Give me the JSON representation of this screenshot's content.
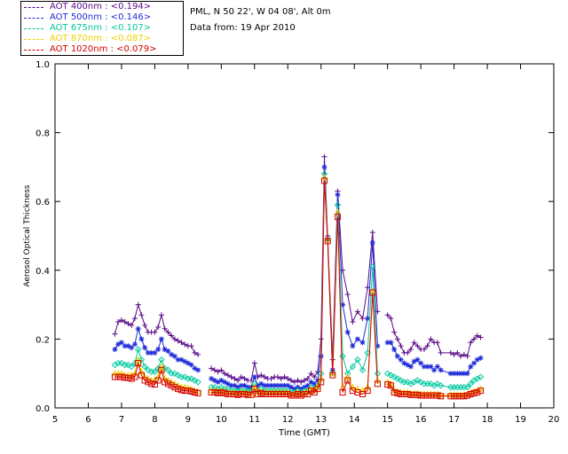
{
  "legend": [
    {
      "label": "AOT  400nm : <0.194>",
      "color": "#5a0a8a"
    },
    {
      "label": "AOT  500nm : <0.146>",
      "color": "#1f2bd8"
    },
    {
      "label": "AOT  675nm : <0.107>",
      "color": "#00c8a0"
    },
    {
      "label": "AOT  870nm : <0.087>",
      "color": "#f0d000"
    },
    {
      "label": "AOT 1020nm : <0.079>",
      "color": "#d40000"
    }
  ],
  "info": {
    "site": "PML, N 50 22', W 04 08', Alt 0m",
    "date": "Data from: 19 Apr 2010"
  },
  "chart_data": {
    "type": "scatter",
    "title": "",
    "xlabel": "Time (GMT)",
    "ylabel": "Aerosol Optical Thickness",
    "xlim": [
      5,
      20
    ],
    "ylim": [
      0,
      1.0
    ],
    "xticks": [
      "5",
      "6",
      "7",
      "8",
      "9",
      "10",
      "11",
      "12",
      "13",
      "14",
      "15",
      "16",
      "17",
      "18",
      "19",
      "20"
    ],
    "yticks": [
      "0.0",
      "0.2",
      "0.4",
      "0.6",
      "0.8",
      "1.0"
    ],
    "series": [
      {
        "name": "AOT  400nm",
        "color": "#5a0a8a",
        "marker": "plus",
        "x": [
          6.8,
          6.9,
          7.0,
          7.1,
          7.2,
          7.3,
          7.4,
          7.5,
          7.6,
          7.7,
          7.8,
          7.9,
          8.0,
          8.1,
          8.2,
          8.3,
          8.4,
          8.5,
          8.6,
          8.7,
          8.8,
          8.9,
          9.0,
          9.1,
          9.2,
          9.3,
          9.7,
          9.8,
          9.9,
          10.0,
          10.1,
          10.2,
          10.3,
          10.4,
          10.5,
          10.6,
          10.7,
          10.8,
          10.9,
          11.0,
          11.1,
          11.2,
          11.3,
          11.4,
          11.5,
          11.6,
          11.7,
          11.8,
          11.9,
          12.0,
          12.1,
          12.2,
          12.3,
          12.4,
          12.5,
          12.6,
          12.7,
          12.8,
          12.9,
          13.0,
          13.1,
          13.2,
          13.35,
          13.5,
          13.65,
          13.8,
          13.95,
          14.1,
          14.25,
          14.4,
          14.55,
          14.7,
          15.0,
          15.1,
          15.2,
          15.3,
          15.4,
          15.5,
          15.6,
          15.7,
          15.8,
          15.9,
          16.0,
          16.1,
          16.2,
          16.3,
          16.4,
          16.5,
          16.6,
          16.9,
          17.0,
          17.1,
          17.2,
          17.3,
          17.4,
          17.5,
          17.6,
          17.7,
          17.8
        ],
        "y": [
          0.215,
          0.25,
          0.255,
          0.25,
          0.245,
          0.24,
          0.26,
          0.3,
          0.27,
          0.24,
          0.22,
          0.22,
          0.22,
          0.235,
          0.27,
          0.23,
          0.22,
          0.21,
          0.2,
          0.195,
          0.19,
          0.185,
          0.18,
          0.18,
          0.16,
          0.155,
          0.115,
          0.11,
          0.105,
          0.11,
          0.1,
          0.095,
          0.09,
          0.085,
          0.08,
          0.09,
          0.085,
          0.08,
          0.08,
          0.13,
          0.09,
          0.095,
          0.09,
          0.085,
          0.085,
          0.09,
          0.09,
          0.085,
          0.09,
          0.085,
          0.08,
          0.075,
          0.08,
          0.075,
          0.08,
          0.085,
          0.1,
          0.09,
          0.105,
          0.2,
          0.73,
          0.5,
          0.14,
          0.63,
          0.4,
          0.33,
          0.25,
          0.28,
          0.26,
          0.35,
          0.51,
          0.28,
          0.27,
          0.26,
          0.22,
          0.2,
          0.18,
          0.16,
          0.16,
          0.17,
          0.19,
          0.18,
          0.17,
          0.17,
          0.18,
          0.2,
          0.19,
          0.19,
          0.16,
          0.16,
          0.155,
          0.16,
          0.15,
          0.155,
          0.15,
          0.19,
          0.2,
          0.21,
          0.205
        ]
      },
      {
        "name": "AOT  500nm",
        "color": "#1f2bd8",
        "marker": "asterisk",
        "x": [
          6.8,
          6.9,
          7.0,
          7.1,
          7.2,
          7.3,
          7.4,
          7.5,
          7.6,
          7.7,
          7.8,
          7.9,
          8.0,
          8.1,
          8.2,
          8.3,
          8.4,
          8.5,
          8.6,
          8.7,
          8.8,
          8.9,
          9.0,
          9.1,
          9.2,
          9.3,
          9.7,
          9.8,
          9.9,
          10.0,
          10.1,
          10.2,
          10.3,
          10.4,
          10.5,
          10.6,
          10.7,
          10.8,
          10.9,
          11.0,
          11.1,
          11.2,
          11.3,
          11.4,
          11.5,
          11.6,
          11.7,
          11.8,
          11.9,
          12.0,
          12.1,
          12.2,
          12.3,
          12.4,
          12.5,
          12.6,
          12.7,
          12.8,
          12.9,
          13.0,
          13.1,
          13.2,
          13.35,
          13.5,
          13.65,
          13.8,
          13.95,
          14.1,
          14.25,
          14.4,
          14.55,
          14.7,
          15.0,
          15.1,
          15.2,
          15.3,
          15.4,
          15.5,
          15.6,
          15.7,
          15.8,
          15.9,
          16.0,
          16.1,
          16.2,
          16.3,
          16.4,
          16.5,
          16.6,
          16.9,
          17.0,
          17.1,
          17.2,
          17.3,
          17.4,
          17.5,
          17.6,
          17.7,
          17.8
        ],
        "y": [
          0.17,
          0.185,
          0.19,
          0.18,
          0.18,
          0.175,
          0.185,
          0.23,
          0.2,
          0.175,
          0.16,
          0.16,
          0.16,
          0.17,
          0.2,
          0.17,
          0.165,
          0.155,
          0.15,
          0.14,
          0.14,
          0.135,
          0.13,
          0.125,
          0.115,
          0.11,
          0.085,
          0.08,
          0.075,
          0.08,
          0.075,
          0.07,
          0.065,
          0.065,
          0.06,
          0.065,
          0.065,
          0.06,
          0.06,
          0.09,
          0.065,
          0.07,
          0.065,
          0.065,
          0.065,
          0.065,
          0.065,
          0.065,
          0.065,
          0.065,
          0.06,
          0.055,
          0.06,
          0.055,
          0.06,
          0.065,
          0.075,
          0.07,
          0.08,
          0.15,
          0.7,
          0.49,
          0.11,
          0.62,
          0.3,
          0.22,
          0.18,
          0.2,
          0.19,
          0.26,
          0.48,
          0.18,
          0.19,
          0.19,
          0.17,
          0.15,
          0.14,
          0.13,
          0.125,
          0.12,
          0.135,
          0.14,
          0.13,
          0.12,
          0.12,
          0.12,
          0.11,
          0.12,
          0.11,
          0.1,
          0.1,
          0.1,
          0.1,
          0.1,
          0.1,
          0.12,
          0.13,
          0.14,
          0.145
        ]
      },
      {
        "name": "AOT  675nm",
        "color": "#00c8a0",
        "marker": "diamond",
        "x": [
          6.8,
          6.9,
          7.0,
          7.1,
          7.2,
          7.3,
          7.4,
          7.5,
          7.6,
          7.7,
          7.8,
          7.9,
          8.0,
          8.1,
          8.2,
          8.3,
          8.4,
          8.5,
          8.6,
          8.7,
          8.8,
          8.9,
          9.0,
          9.1,
          9.2,
          9.3,
          9.7,
          9.8,
          9.9,
          10.0,
          10.1,
          10.2,
          10.3,
          10.4,
          10.5,
          10.6,
          10.7,
          10.8,
          10.9,
          11.0,
          11.1,
          11.2,
          11.3,
          11.4,
          11.5,
          11.6,
          11.7,
          11.8,
          11.9,
          12.0,
          12.1,
          12.2,
          12.3,
          12.4,
          12.5,
          12.6,
          12.7,
          12.8,
          12.9,
          13.0,
          13.1,
          13.2,
          13.35,
          13.5,
          13.65,
          13.8,
          13.95,
          14.1,
          14.25,
          14.4,
          14.55,
          14.7,
          15.0,
          15.1,
          15.2,
          15.3,
          15.4,
          15.5,
          15.6,
          15.7,
          15.8,
          15.9,
          16.0,
          16.1,
          16.2,
          16.3,
          16.4,
          16.5,
          16.6,
          16.9,
          17.0,
          17.1,
          17.2,
          17.3,
          17.4,
          17.5,
          17.6,
          17.7,
          17.8
        ],
        "y": [
          0.125,
          0.13,
          0.13,
          0.125,
          0.125,
          0.12,
          0.13,
          0.17,
          0.14,
          0.12,
          0.11,
          0.105,
          0.105,
          0.115,
          0.14,
          0.115,
          0.11,
          0.1,
          0.1,
          0.095,
          0.09,
          0.09,
          0.085,
          0.085,
          0.08,
          0.075,
          0.06,
          0.06,
          0.055,
          0.06,
          0.055,
          0.055,
          0.05,
          0.05,
          0.05,
          0.05,
          0.05,
          0.05,
          0.05,
          0.07,
          0.05,
          0.055,
          0.05,
          0.05,
          0.05,
          0.05,
          0.05,
          0.05,
          0.05,
          0.05,
          0.045,
          0.045,
          0.05,
          0.045,
          0.05,
          0.05,
          0.06,
          0.055,
          0.065,
          0.1,
          0.68,
          0.49,
          0.1,
          0.59,
          0.15,
          0.1,
          0.12,
          0.14,
          0.11,
          0.16,
          0.41,
          0.1,
          0.1,
          0.095,
          0.09,
          0.085,
          0.08,
          0.075,
          0.075,
          0.07,
          0.075,
          0.08,
          0.075,
          0.07,
          0.07,
          0.07,
          0.065,
          0.07,
          0.065,
          0.06,
          0.06,
          0.06,
          0.06,
          0.06,
          0.06,
          0.07,
          0.08,
          0.085,
          0.09
        ]
      },
      {
        "name": "AOT  870nm",
        "color": "#f0d000",
        "marker": "triangle",
        "x": [
          6.8,
          6.9,
          7.0,
          7.1,
          7.2,
          7.3,
          7.4,
          7.5,
          7.6,
          7.7,
          7.8,
          7.9,
          8.0,
          8.1,
          8.2,
          8.3,
          8.4,
          8.5,
          8.6,
          8.7,
          8.8,
          8.9,
          9.0,
          9.1,
          9.2,
          9.3,
          9.7,
          9.8,
          9.9,
          10.0,
          10.1,
          10.2,
          10.3,
          10.4,
          10.5,
          10.6,
          10.7,
          10.8,
          10.9,
          11.0,
          11.1,
          11.2,
          11.3,
          11.4,
          11.5,
          11.6,
          11.7,
          11.8,
          11.9,
          12.0,
          12.1,
          12.2,
          12.3,
          12.4,
          12.5,
          12.6,
          12.7,
          12.8,
          12.9,
          13.0,
          13.1,
          13.2,
          13.35,
          13.5,
          13.65,
          13.8,
          13.95,
          14.1,
          14.25,
          14.4,
          14.55,
          14.7,
          15.0,
          15.1,
          15.2,
          15.3,
          15.4,
          15.5,
          15.6,
          15.7,
          15.8,
          15.9,
          16.0,
          16.1,
          16.2,
          16.3,
          16.4,
          16.5,
          16.6,
          16.9,
          17.0,
          17.1,
          17.2,
          17.3,
          17.4,
          17.5,
          17.6,
          17.7,
          17.8
        ],
        "y": [
          0.1,
          0.1,
          0.1,
          0.095,
          0.095,
          0.095,
          0.1,
          0.14,
          0.105,
          0.09,
          0.085,
          0.08,
          0.08,
          0.09,
          0.12,
          0.085,
          0.08,
          0.075,
          0.07,
          0.065,
          0.06,
          0.06,
          0.058,
          0.055,
          0.05,
          0.048,
          0.05,
          0.05,
          0.048,
          0.05,
          0.048,
          0.045,
          0.045,
          0.045,
          0.042,
          0.045,
          0.045,
          0.042,
          0.042,
          0.06,
          0.045,
          0.048,
          0.045,
          0.045,
          0.045,
          0.045,
          0.045,
          0.045,
          0.045,
          0.045,
          0.04,
          0.04,
          0.045,
          0.04,
          0.045,
          0.045,
          0.055,
          0.05,
          0.06,
          0.085,
          0.67,
          0.49,
          0.1,
          0.57,
          0.06,
          0.09,
          0.06,
          0.055,
          0.05,
          0.06,
          0.34,
          0.08,
          0.075,
          0.07,
          0.05,
          0.048,
          0.045,
          0.045,
          0.045,
          0.042,
          0.042,
          0.042,
          0.04,
          0.04,
          0.04,
          0.04,
          0.04,
          0.04,
          0.038,
          0.038,
          0.038,
          0.038,
          0.038,
          0.038,
          0.04,
          0.045,
          0.048,
          0.05,
          0.055
        ]
      },
      {
        "name": "AOT 1020nm",
        "color": "#d40000",
        "marker": "square",
        "x": [
          6.8,
          6.9,
          7.0,
          7.1,
          7.2,
          7.3,
          7.4,
          7.5,
          7.6,
          7.7,
          7.8,
          7.9,
          8.0,
          8.1,
          8.2,
          8.3,
          8.4,
          8.5,
          8.6,
          8.7,
          8.8,
          8.9,
          9.0,
          9.1,
          9.2,
          9.3,
          9.7,
          9.8,
          9.9,
          10.0,
          10.1,
          10.2,
          10.3,
          10.4,
          10.5,
          10.6,
          10.7,
          10.8,
          10.9,
          11.0,
          11.1,
          11.2,
          11.3,
          11.4,
          11.5,
          11.6,
          11.7,
          11.8,
          11.9,
          12.0,
          12.1,
          12.2,
          12.3,
          12.4,
          12.5,
          12.6,
          12.7,
          12.8,
          12.9,
          13.0,
          13.1,
          13.2,
          13.35,
          13.5,
          13.65,
          13.8,
          13.95,
          14.1,
          14.25,
          14.4,
          14.55,
          14.7,
          15.0,
          15.1,
          15.2,
          15.3,
          15.4,
          15.5,
          15.6,
          15.7,
          15.8,
          15.9,
          16.0,
          16.1,
          16.2,
          16.3,
          16.4,
          16.5,
          16.6,
          16.9,
          17.0,
          17.1,
          17.2,
          17.3,
          17.4,
          17.5,
          17.6,
          17.7,
          17.8
        ],
        "y": [
          0.09,
          0.09,
          0.09,
          0.088,
          0.087,
          0.085,
          0.09,
          0.13,
          0.095,
          0.08,
          0.075,
          0.07,
          0.068,
          0.08,
          0.11,
          0.075,
          0.07,
          0.065,
          0.06,
          0.055,
          0.052,
          0.05,
          0.05,
          0.048,
          0.045,
          0.043,
          0.045,
          0.045,
          0.043,
          0.045,
          0.043,
          0.04,
          0.04,
          0.04,
          0.038,
          0.04,
          0.04,
          0.038,
          0.038,
          0.055,
          0.04,
          0.043,
          0.04,
          0.04,
          0.04,
          0.04,
          0.04,
          0.04,
          0.04,
          0.04,
          0.036,
          0.036,
          0.04,
          0.036,
          0.04,
          0.04,
          0.05,
          0.045,
          0.055,
          0.075,
          0.66,
          0.485,
          0.095,
          0.555,
          0.045,
          0.08,
          0.05,
          0.045,
          0.04,
          0.05,
          0.335,
          0.07,
          0.068,
          0.065,
          0.045,
          0.043,
          0.04,
          0.04,
          0.04,
          0.038,
          0.038,
          0.038,
          0.036,
          0.036,
          0.036,
          0.036,
          0.036,
          0.036,
          0.034,
          0.034,
          0.034,
          0.034,
          0.034,
          0.034,
          0.036,
          0.04,
          0.043,
          0.045,
          0.05
        ]
      }
    ]
  }
}
